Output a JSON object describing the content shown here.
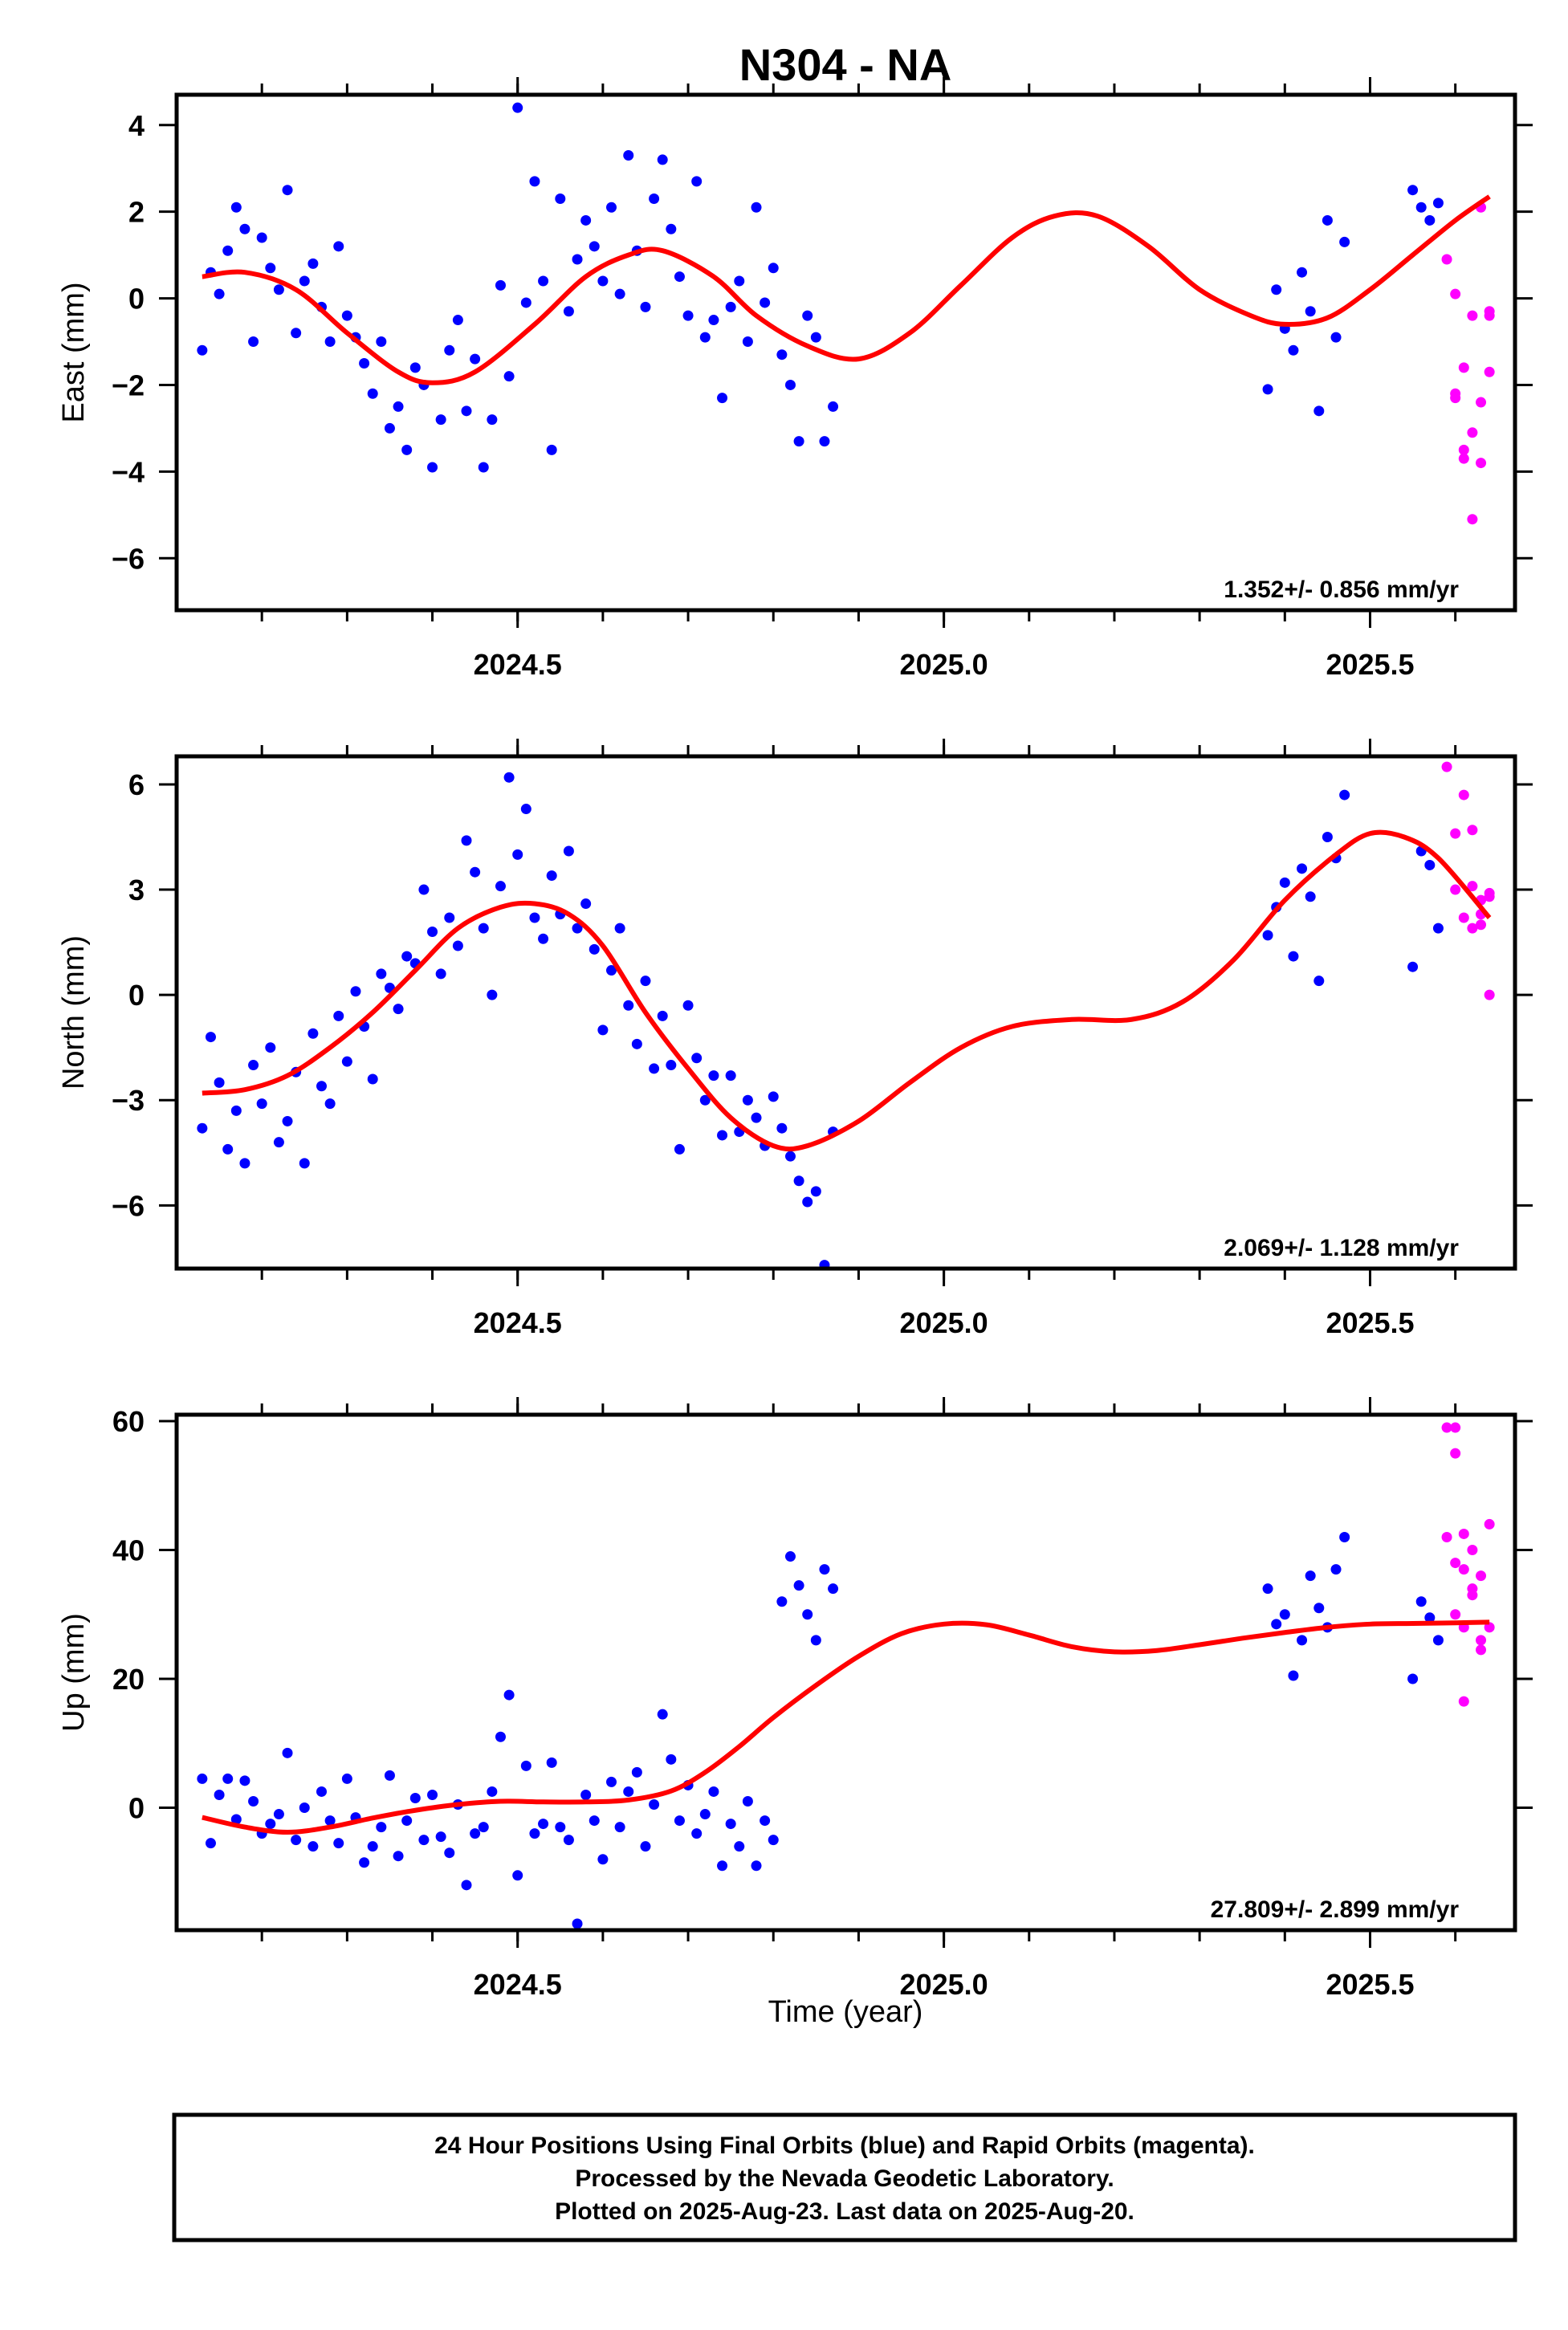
{
  "title": "N304 - NA",
  "xlabel": "Time (year)",
  "footer": {
    "lines": [
      "24 Hour Positions Using Final Orbits (blue) and Rapid Orbits (magenta).",
      "Processed by the Nevada Geodetic Laboratory.",
      "Plotted on 2025-Aug-23. Last data on 2025-Aug-20."
    ]
  },
  "colors": {
    "final_orbits": "#0000ff",
    "rapid_orbits": "#ff00ff",
    "fit": "#ff0000",
    "frame": "#000000"
  },
  "chart_data": [
    {
      "type": "scatter",
      "ylabel": "East (mm)",
      "rate_label": "1.352+/- 0.856 mm/yr",
      "xlim": [
        2024.1,
        2025.67
      ],
      "ylim": [
        -7.2,
        4.7
      ],
      "xticks": [
        2024.5,
        2025.0,
        2025.5
      ],
      "xtick_labels": [
        "2024.5",
        "2025.0",
        "2025.5"
      ],
      "yticks": [
        4,
        2,
        0,
        -2,
        -4,
        -6
      ],
      "ytick_labels": [
        "4",
        "2",
        "0",
        "−2",
        "−4",
        "−6"
      ],
      "fit": {
        "x": [
          2024.13,
          2024.18,
          2024.24,
          2024.3,
          2024.36,
          2024.4,
          2024.45,
          2024.52,
          2024.58,
          2024.63,
          2024.67,
          2024.73,
          2024.78,
          2024.84,
          2024.9,
          2024.96,
          2025.02,
          2025.08,
          2025.13,
          2025.18,
          2025.24,
          2025.3,
          2025.36,
          2025.4,
          2025.45,
          2025.5,
          2025.55,
          2025.6,
          2025.64
        ],
        "y": [
          0.5,
          0.6,
          0.2,
          -0.8,
          -1.7,
          -1.95,
          -1.7,
          -0.6,
          0.5,
          1.0,
          1.1,
          0.5,
          -0.4,
          -1.1,
          -1.4,
          -0.8,
          0.3,
          1.4,
          1.9,
          1.9,
          1.2,
          0.2,
          -0.4,
          -0.6,
          -0.45,
          0.2,
          1.0,
          1.8,
          2.35
        ]
      },
      "final_orbits": {
        "x": [
          2024.13,
          2024.14,
          2024.15,
          2024.16,
          2024.17,
          2024.18,
          2024.19,
          2024.2,
          2024.21,
          2024.22,
          2024.23,
          2024.24,
          2024.25,
          2024.26,
          2024.27,
          2024.28,
          2024.29,
          2024.3,
          2024.31,
          2024.32,
          2024.33,
          2024.34,
          2024.35,
          2024.36,
          2024.37,
          2024.38,
          2024.39,
          2024.4,
          2024.41,
          2024.42,
          2024.43,
          2024.44,
          2024.45,
          2024.46,
          2024.47,
          2024.48,
          2024.49,
          2024.5,
          2024.51,
          2024.52,
          2024.53,
          2024.54,
          2024.55,
          2024.56,
          2024.57,
          2024.58,
          2024.59,
          2024.6,
          2024.61,
          2024.62,
          2024.63,
          2024.64,
          2024.65,
          2024.66,
          2024.67,
          2024.68,
          2024.69,
          2024.7,
          2024.71,
          2024.72,
          2024.73,
          2024.74,
          2024.75,
          2024.76,
          2024.77,
          2024.78,
          2024.79,
          2024.8,
          2024.81,
          2024.82,
          2024.83,
          2024.84,
          2024.85,
          2024.86,
          2024.87,
          2025.38,
          2025.39,
          2025.4,
          2025.41,
          2025.42,
          2025.43,
          2025.44,
          2025.45,
          2025.46,
          2025.47,
          2025.55,
          2025.56,
          2025.57,
          2025.58
        ],
        "y": [
          -1.2,
          0.6,
          0.1,
          1.1,
          2.1,
          1.6,
          -1.0,
          1.4,
          0.7,
          0.2,
          2.5,
          -0.8,
          0.4,
          0.8,
          -0.2,
          -1.0,
          1.2,
          -0.4,
          -0.9,
          -1.5,
          -2.2,
          -1.0,
          -3.0,
          -2.5,
          -3.5,
          -1.6,
          -2.0,
          -3.9,
          -2.8,
          -1.2,
          -0.5,
          -2.6,
          -1.4,
          -3.9,
          -2.8,
          0.3,
          -1.8,
          4.4,
          -0.1,
          2.7,
          0.4,
          -3.5,
          2.3,
          -0.3,
          0.9,
          1.8,
          1.2,
          0.4,
          2.1,
          0.1,
          3.3,
          1.1,
          -0.2,
          2.3,
          3.2,
          1.6,
          0.5,
          -0.4,
          2.7,
          -0.9,
          -0.5,
          -2.3,
          -0.2,
          0.4,
          -1.0,
          2.1,
          -0.1,
          0.7,
          -1.3,
          -2.0,
          -3.3,
          -0.4,
          -0.9,
          -3.3,
          -2.5,
          -2.1,
          0.2,
          -0.7,
          -1.2,
          0.6,
          -0.3,
          -2.6,
          1.8,
          -0.9,
          1.3,
          2.5,
          2.1,
          1.8,
          2.2
        ],
        "y_spread": [
          0.0
        ]
      },
      "rapid_orbits": {
        "x": [
          2025.59,
          2025.6,
          2025.61,
          2025.62,
          2025.63,
          2025.64,
          2025.6,
          2025.61,
          2025.62,
          2025.63,
          2025.64,
          2025.62,
          2025.63,
          2025.64,
          2025.6,
          2025.61
        ],
        "y": [
          0.9,
          -2.2,
          -3.5,
          -5.1,
          -2.4,
          -0.3,
          0.1,
          -1.6,
          -3.1,
          2.1,
          -1.7,
          -0.4,
          -3.8,
          -0.4,
          -2.3,
          -3.7
        ]
      }
    },
    {
      "type": "scatter",
      "ylabel": "North (mm)",
      "rate_label": "2.069+/- 1.128 mm/yr",
      "xlim": [
        2024.1,
        2025.67
      ],
      "ylim": [
        -7.8,
        6.8
      ],
      "xticks": [
        2024.5,
        2025.0,
        2025.5
      ],
      "xtick_labels": [
        "2024.5",
        "2025.0",
        "2025.5"
      ],
      "yticks": [
        6,
        3,
        0,
        -3,
        -6
      ],
      "ytick_labels": [
        "6",
        "3",
        "0",
        "−3",
        "−6"
      ],
      "fit": {
        "x": [
          2024.13,
          2024.18,
          2024.23,
          2024.28,
          2024.33,
          2024.38,
          2024.43,
          2024.48,
          2024.52,
          2024.56,
          2024.6,
          2024.65,
          2024.7,
          2024.75,
          2024.8,
          2024.84,
          2024.9,
          2024.96,
          2025.02,
          2025.08,
          2025.15,
          2025.22,
          2025.28,
          2025.34,
          2025.4,
          2025.46,
          2025.5,
          2025.54,
          2025.58,
          2025.64
        ],
        "y": [
          -2.8,
          -2.7,
          -2.3,
          -1.5,
          -0.5,
          0.7,
          1.9,
          2.5,
          2.6,
          2.3,
          1.4,
          -0.5,
          -2.1,
          -3.5,
          -4.3,
          -4.3,
          -3.6,
          -2.5,
          -1.5,
          -0.9,
          -0.7,
          -0.7,
          -0.2,
          1.0,
          2.7,
          4.0,
          4.6,
          4.5,
          3.9,
          2.2
        ]
      },
      "final_orbits": {
        "x": [
          2024.13,
          2024.14,
          2024.15,
          2024.16,
          2024.17,
          2024.18,
          2024.19,
          2024.2,
          2024.21,
          2024.22,
          2024.23,
          2024.24,
          2024.25,
          2024.26,
          2024.27,
          2024.28,
          2024.29,
          2024.3,
          2024.31,
          2024.32,
          2024.33,
          2024.34,
          2024.35,
          2024.36,
          2024.37,
          2024.38,
          2024.39,
          2024.4,
          2024.41,
          2024.42,
          2024.43,
          2024.44,
          2024.45,
          2024.46,
          2024.47,
          2024.48,
          2024.49,
          2024.5,
          2024.51,
          2024.52,
          2024.53,
          2024.54,
          2024.55,
          2024.56,
          2024.57,
          2024.58,
          2024.59,
          2024.6,
          2024.61,
          2024.62,
          2024.63,
          2024.64,
          2024.65,
          2024.66,
          2024.67,
          2024.68,
          2024.69,
          2024.7,
          2024.71,
          2024.72,
          2024.73,
          2024.74,
          2024.75,
          2024.76,
          2024.77,
          2024.78,
          2024.79,
          2024.8,
          2024.81,
          2024.82,
          2024.83,
          2024.84,
          2024.85,
          2024.86,
          2024.87,
          2025.38,
          2025.39,
          2025.4,
          2025.41,
          2025.42,
          2025.43,
          2025.44,
          2025.45,
          2025.46,
          2025.47,
          2025.55,
          2025.56,
          2025.57,
          2025.58
        ],
        "y": [
          -3.8,
          -1.2,
          -2.5,
          -4.4,
          -3.3,
          -4.8,
          -2.0,
          -3.1,
          -1.5,
          -4.2,
          -3.6,
          -2.2,
          -4.8,
          -1.1,
          -2.6,
          -3.1,
          -0.6,
          -1.9,
          0.1,
          -0.9,
          -2.4,
          0.6,
          0.2,
          -0.4,
          1.1,
          0.9,
          3.0,
          1.8,
          0.6,
          2.2,
          1.4,
          4.4,
          3.5,
          1.9,
          0.0,
          3.1,
          6.2,
          4.0,
          5.3,
          2.2,
          1.6,
          3.4,
          2.3,
          4.1,
          1.9,
          2.6,
          1.3,
          -1.0,
          0.7,
          1.9,
          -0.3,
          -1.4,
          0.4,
          -2.1,
          -0.6,
          -2.0,
          -4.4,
          -0.3,
          -1.8,
          -3.0,
          -2.3,
          -4.0,
          -2.3,
          -3.9,
          -3.0,
          -3.5,
          -4.3,
          -2.9,
          -3.8,
          -4.6,
          -5.3,
          -5.9,
          -5.6,
          -7.7,
          -3.9,
          1.7,
          2.5,
          3.2,
          1.1,
          3.6,
          2.8,
          0.4,
          4.5,
          3.9,
          5.7,
          0.8,
          4.1,
          3.7,
          1.9
        ],
        "y_spread": [
          0.0
        ]
      },
      "rapid_orbits": {
        "x": [
          2025.59,
          2025.6,
          2025.61,
          2025.62,
          2025.63,
          2025.64,
          2025.6,
          2025.61,
          2025.62,
          2025.63,
          2025.64,
          2025.62,
          2025.63,
          2025.64
        ],
        "y": [
          6.5,
          4.6,
          2.2,
          3.1,
          2.0,
          2.9,
          3.0,
          5.7,
          4.7,
          2.7,
          0.0,
          1.9,
          2.3,
          2.8
        ]
      }
    },
    {
      "type": "scatter",
      "ylabel": "Up (mm)",
      "rate_label": "27.809+/- 2.899 mm/yr",
      "xlim": [
        2024.1,
        2025.67
      ],
      "ylim": [
        -19,
        61
      ],
      "xticks": [
        2024.5,
        2025.0,
        2025.5
      ],
      "xtick_labels": [
        "2024.5",
        "2025.0",
        "2025.5"
      ],
      "yticks": [
        60,
        40,
        20,
        0
      ],
      "ytick_labels": [
        "60",
        "40",
        "20",
        "0"
      ],
      "fit": {
        "x": [
          2024.13,
          2024.18,
          2024.23,
          2024.28,
          2024.33,
          2024.38,
          2024.43,
          2024.48,
          2024.53,
          2024.58,
          2024.63,
          2024.68,
          2024.72,
          2024.76,
          2024.8,
          2024.85,
          2024.9,
          2024.95,
          2025.0,
          2025.05,
          2025.1,
          2025.15,
          2025.2,
          2025.25,
          2025.3,
          2025.35,
          2025.4,
          2025.45,
          2025.5,
          2025.55,
          2025.6,
          2025.64
        ],
        "y": [
          -1.5,
          -3.0,
          -3.8,
          -3.0,
          -1.6,
          -0.4,
          0.5,
          1.0,
          0.9,
          0.9,
          1.2,
          2.6,
          5.5,
          9.5,
          14.0,
          19.0,
          23.5,
          27.0,
          28.5,
          28.4,
          26.8,
          25.0,
          24.2,
          24.4,
          25.3,
          26.3,
          27.2,
          28.0,
          28.5,
          28.6,
          28.7,
          28.8
        ]
      },
      "final_orbits": {
        "x": [
          2024.13,
          2024.14,
          2024.15,
          2024.16,
          2024.17,
          2024.18,
          2024.19,
          2024.2,
          2024.21,
          2024.22,
          2024.23,
          2024.24,
          2024.25,
          2024.26,
          2024.27,
          2024.28,
          2024.29,
          2024.3,
          2024.31,
          2024.32,
          2024.33,
          2024.34,
          2024.35,
          2024.36,
          2024.37,
          2024.38,
          2024.39,
          2024.4,
          2024.41,
          2024.42,
          2024.43,
          2024.44,
          2024.45,
          2024.46,
          2024.47,
          2024.48,
          2024.49,
          2024.5,
          2024.51,
          2024.52,
          2024.53,
          2024.54,
          2024.55,
          2024.56,
          2024.57,
          2024.58,
          2024.59,
          2024.6,
          2024.61,
          2024.62,
          2024.63,
          2024.64,
          2024.65,
          2024.66,
          2024.67,
          2024.68,
          2024.69,
          2024.7,
          2024.71,
          2024.72,
          2024.73,
          2024.74,
          2024.75,
          2024.76,
          2024.77,
          2024.78,
          2024.79,
          2024.8,
          2024.81,
          2024.82,
          2024.83,
          2024.84,
          2024.85,
          2024.86,
          2024.87,
          2025.38,
          2025.39,
          2025.4,
          2025.41,
          2025.42,
          2025.43,
          2025.44,
          2025.45,
          2025.46,
          2025.47,
          2025.55,
          2025.56,
          2025.57,
          2025.58
        ],
        "y": [
          4.5,
          -5.5,
          2.0,
          4.5,
          -1.8,
          4.2,
          1.0,
          -4.0,
          -2.5,
          -1.0,
          8.5,
          -5.0,
          0.0,
          -6.0,
          2.5,
          -2.0,
          -5.5,
          4.5,
          -1.5,
          -8.5,
          -6.0,
          -3.0,
          5.0,
          -7.5,
          -2.0,
          1.5,
          -5.0,
          2.0,
          -4.5,
          -7.0,
          0.5,
          -12.0,
          -4.0,
          -3.0,
          2.5,
          11.0,
          17.5,
          -10.5,
          6.5,
          -4.0,
          -2.5,
          7.0,
          -3.0,
          -5.0,
          -18.0,
          2.0,
          -2.0,
          -8.0,
          4.0,
          -3.0,
          2.5,
          5.5,
          -6.0,
          0.5,
          14.5,
          7.5,
          -2.0,
          3.5,
          -4.0,
          -1.0,
          2.5,
          -9.0,
          -2.5,
          -6.0,
          1.0,
          -9.0,
          -2.0,
          -5.0,
          32.0,
          39.0,
          34.5,
          30.0,
          26.0,
          37.0,
          34.0,
          34.0,
          28.5,
          30.0,
          20.5,
          26.0,
          36.0,
          31.0,
          28.0,
          37.0,
          42.0,
          20.0,
          32.0,
          29.5,
          26.0
        ],
        "y_spread": [
          0.0
        ]
      },
      "rapid_orbits": {
        "x": [
          2025.59,
          2025.6,
          2025.61,
          2025.62,
          2025.63,
          2025.64,
          2025.6,
          2025.61,
          2025.62,
          2025.63,
          2025.64,
          2025.59,
          2025.6,
          2025.61,
          2025.62,
          2025.63,
          2025.61,
          2025.6
        ],
        "y": [
          59.0,
          55.0,
          42.5,
          33.0,
          36.0,
          44.0,
          59.0,
          28.0,
          40.0,
          24.5,
          28.0,
          42.0,
          30.0,
          16.5,
          34.0,
          26.0,
          37.0,
          38.0
        ]
      }
    }
  ]
}
